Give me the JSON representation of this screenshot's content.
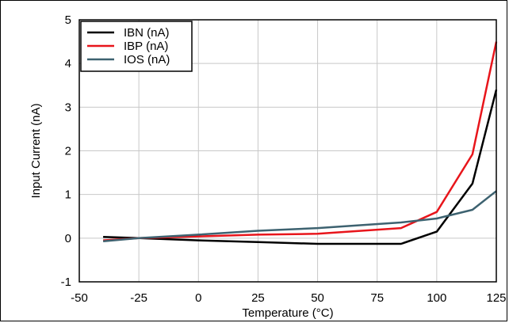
{
  "chart_data": {
    "type": "line",
    "title": "",
    "xlabel": "Temperature (°C)",
    "ylabel": "Input Current (nA)",
    "xlim": [
      -50,
      125
    ],
    "ylim": [
      -1,
      5
    ],
    "xticks": [
      -50,
      -25,
      0,
      25,
      50,
      75,
      100,
      125
    ],
    "yticks": [
      -1,
      0,
      1,
      2,
      3,
      4,
      5
    ],
    "grid": true,
    "legend_position": "top-left",
    "series": [
      {
        "name": "IBN (nA)",
        "color": "#000000",
        "x": [
          -40,
          -25,
          0,
          25,
          50,
          85,
          100,
          115,
          125
        ],
        "y": [
          0.03,
          0.0,
          -0.05,
          -0.09,
          -0.13,
          -0.13,
          0.15,
          1.25,
          3.4
        ]
      },
      {
        "name": "IBP (nA)",
        "color": "#e8151b",
        "x": [
          -40,
          -25,
          0,
          25,
          50,
          85,
          100,
          115,
          125
        ],
        "y": [
          -0.05,
          0.0,
          0.04,
          0.08,
          0.1,
          0.23,
          0.6,
          1.92,
          4.5
        ]
      },
      {
        "name": "IOS (nA)",
        "color": "#3d6270",
        "x": [
          -40,
          -25,
          0,
          25,
          50,
          85,
          100,
          115,
          125
        ],
        "y": [
          -0.07,
          0.0,
          0.08,
          0.17,
          0.23,
          0.36,
          0.45,
          0.65,
          1.08
        ]
      }
    ]
  }
}
